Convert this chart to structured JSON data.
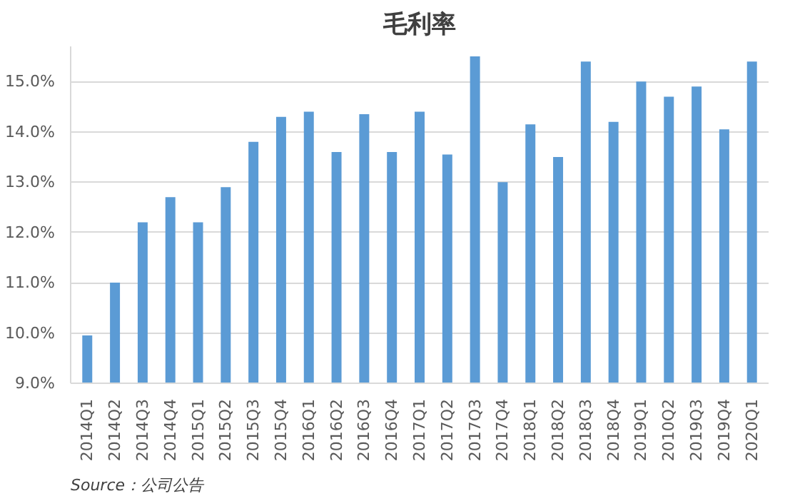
{
  "chart_data": {
    "type": "bar",
    "title": "毛利率",
    "categories": [
      "2014Q1",
      "2014Q2",
      "2014Q3",
      "2014Q4",
      "2015Q1",
      "2015Q2",
      "2015Q3",
      "2015Q4",
      "2016Q1",
      "2016Q2",
      "2016Q3",
      "2016Q4",
      "2017Q1",
      "2017Q2",
      "2017Q3",
      "2017Q4",
      "2018Q1",
      "2018Q2",
      "2018Q3",
      "2018Q4",
      "2019Q1",
      "2010Q2",
      "2019Q3",
      "2019Q4",
      "2020Q1"
    ],
    "series": [
      {
        "color": "#5b9bd5",
        "values": [
          9.95,
          11.0,
          12.2,
          12.7,
          12.2,
          12.9,
          13.8,
          14.3,
          14.4,
          13.6,
          14.35,
          13.6,
          14.4,
          13.55,
          15.5,
          13.0,
          14.15,
          13.5,
          15.4,
          14.2,
          15.0,
          14.7,
          14.9,
          14.05,
          15.4
        ]
      }
    ],
    "ylim": [
      9,
      15.7
    ],
    "yticks": [
      {
        "value": 9,
        "label": "9.0%"
      },
      {
        "value": 10,
        "label": "10.0%"
      },
      {
        "value": 11,
        "label": "11.0%"
      },
      {
        "value": 12,
        "label": "12.0%"
      },
      {
        "value": 13,
        "label": "13.0%"
      },
      {
        "value": 14,
        "label": "14.0%"
      },
      {
        "value": 15,
        "label": "15.0%"
      }
    ],
    "grid": "y",
    "annotations": [
      "Source：公司公告"
    ]
  }
}
